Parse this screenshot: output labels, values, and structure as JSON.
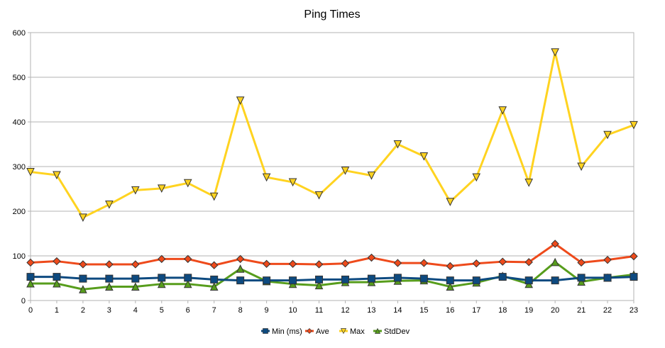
{
  "chart_data": {
    "type": "line",
    "title": "Ping Times",
    "xlabel": "",
    "ylabel": "",
    "categories": [
      "0",
      "1",
      "2",
      "3",
      "4",
      "5",
      "6",
      "7",
      "8",
      "9",
      "10",
      "11",
      "12",
      "13",
      "14",
      "15",
      "16",
      "17",
      "18",
      "19",
      "20",
      "21",
      "22",
      "23"
    ],
    "ylim": [
      0,
      600
    ],
    "yticks": [
      0,
      100,
      200,
      300,
      400,
      500,
      600
    ],
    "grid": true,
    "legend_position": "bottom",
    "series": [
      {
        "name": "Min (ms)",
        "color": "#0d4a80",
        "marker": "square",
        "values": [
          53,
          53,
          49,
          49,
          49,
          51,
          51,
          47,
          45,
          45,
          45,
          47,
          47,
          49,
          51,
          49,
          45,
          45,
          53,
          45,
          45,
          51,
          51,
          53
        ]
      },
      {
        "name": "Ave",
        "color": "#ee4a1b",
        "marker": "diamond",
        "values": [
          85,
          88,
          81,
          81,
          81,
          93,
          93,
          79,
          93,
          82,
          82,
          81,
          83,
          96,
          84,
          84,
          77,
          83,
          87,
          86,
          127,
          85,
          91,
          99
        ]
      },
      {
        "name": "Max",
        "color": "#ffd320",
        "marker": "triangle-down",
        "values": [
          288,
          281,
          186,
          215,
          247,
          251,
          263,
          233,
          448,
          276,
          265,
          236,
          291,
          280,
          350,
          323,
          221,
          276,
          426,
          264,
          556,
          300,
          371,
          393
        ]
      },
      {
        "name": "StdDev",
        "color": "#579d1c",
        "marker": "triangle-up",
        "values": [
          38,
          38,
          25,
          31,
          31,
          37,
          37,
          31,
          71,
          43,
          37,
          34,
          41,
          41,
          44,
          45,
          31,
          40,
          55,
          37,
          86,
          42,
          51,
          58
        ]
      }
    ]
  }
}
